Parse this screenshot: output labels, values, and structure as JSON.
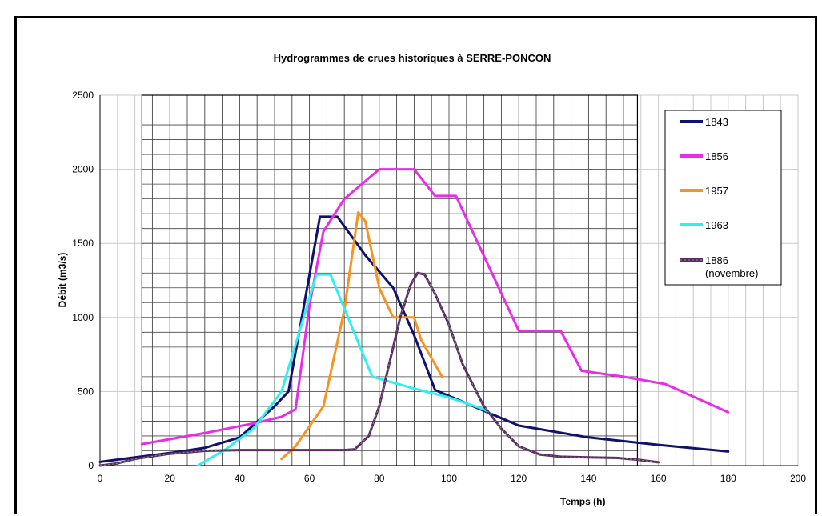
{
  "chart_data": {
    "type": "line",
    "title": "Hydrogrammes de crues historiques à SERRE-PONCON",
    "xlabel": "Temps (h)",
    "ylabel": "Débit (m3/s)",
    "xlim": [
      0,
      200
    ],
    "ylim": [
      0,
      2500
    ],
    "xticks": [
      0,
      20,
      40,
      60,
      80,
      100,
      120,
      140,
      160,
      180,
      200
    ],
    "yticks": [
      0,
      500,
      1000,
      1500,
      2000,
      2500
    ],
    "grid": true,
    "legend_position": "top-right",
    "series": [
      {
        "name": "1843",
        "color": "#10106e",
        "width": 3,
        "points": [
          [
            0,
            25
          ],
          [
            10,
            55
          ],
          [
            20,
            85
          ],
          [
            30,
            120
          ],
          [
            40,
            190
          ],
          [
            50,
            400
          ],
          [
            54,
            500
          ],
          [
            63,
            1680
          ],
          [
            68,
            1680
          ],
          [
            76,
            1420
          ],
          [
            84,
            1200
          ],
          [
            90,
            880
          ],
          [
            96,
            510
          ],
          [
            120,
            270
          ],
          [
            140,
            190
          ],
          [
            160,
            140
          ],
          [
            180,
            95
          ]
        ]
      },
      {
        "name": "1856",
        "color": "#e82ce8",
        "width": 3,
        "points": [
          [
            12,
            145
          ],
          [
            30,
            220
          ],
          [
            45,
            290
          ],
          [
            52,
            330
          ],
          [
            56,
            380
          ],
          [
            60,
            1080
          ],
          [
            64,
            1580
          ],
          [
            70,
            1800
          ],
          [
            80,
            2000
          ],
          [
            90,
            2000
          ],
          [
            96,
            1820
          ],
          [
            102,
            1820
          ],
          [
            120,
            910
          ],
          [
            132,
            910
          ],
          [
            138,
            640
          ],
          [
            150,
            600
          ],
          [
            162,
            550
          ],
          [
            180,
            360
          ]
        ]
      },
      {
        "name": "1957",
        "color": "#f7931e",
        "width": 3,
        "points": [
          [
            52,
            45
          ],
          [
            56,
            130
          ],
          [
            64,
            400
          ],
          [
            70,
            1050
          ],
          [
            74,
            1710
          ],
          [
            76,
            1650
          ],
          [
            80,
            1200
          ],
          [
            84,
            1000
          ],
          [
            90,
            1000
          ],
          [
            92,
            850
          ],
          [
            98,
            600
          ]
        ]
      },
      {
        "name": "1963",
        "color": "#2ef0f0",
        "width": 3,
        "points": [
          [
            28,
            0
          ],
          [
            36,
            110
          ],
          [
            44,
            250
          ],
          [
            52,
            500
          ],
          [
            62,
            1290
          ],
          [
            66,
            1290
          ],
          [
            78,
            600
          ],
          [
            90,
            520
          ],
          [
            100,
            460
          ],
          [
            110,
            380
          ],
          [
            112,
            350
          ]
        ]
      },
      {
        "name": "1886\n(novembre)",
        "color": "#5a2a63",
        "width": 3,
        "points": [
          [
            0,
            0
          ],
          [
            5,
            15
          ],
          [
            10,
            45
          ],
          [
            20,
            80
          ],
          [
            30,
            100
          ],
          [
            40,
            105
          ],
          [
            50,
            105
          ],
          [
            60,
            105
          ],
          [
            70,
            105
          ],
          [
            73,
            110
          ],
          [
            77,
            200
          ],
          [
            80,
            400
          ],
          [
            83,
            700
          ],
          [
            86,
            1000
          ],
          [
            89,
            1220
          ],
          [
            91,
            1300
          ],
          [
            93,
            1290
          ],
          [
            96,
            1160
          ],
          [
            100,
            950
          ],
          [
            104,
            680
          ],
          [
            110,
            400
          ],
          [
            115,
            250
          ],
          [
            120,
            130
          ],
          [
            126,
            75
          ],
          [
            132,
            60
          ],
          [
            140,
            55
          ],
          [
            148,
            52
          ],
          [
            154,
            40
          ],
          [
            160,
            22
          ]
        ]
      }
    ],
    "legend": [
      "1843",
      "1856",
      "1957",
      "1963",
      "1886",
      "(novembre)"
    ]
  }
}
